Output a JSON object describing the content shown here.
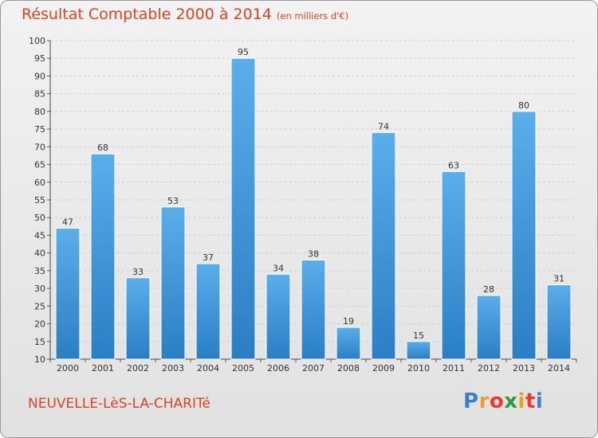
{
  "header": {
    "title": "Résultat Comptable 2000 à 2014",
    "subtitle": "(en milliers d'€)"
  },
  "footer": {
    "town": "NEUVELLE-LèS-LA-CHARITé",
    "logo_letters": [
      {
        "ch": "P",
        "color": "#3a7fd0"
      },
      {
        "ch": "r",
        "color": "#f0a020"
      },
      {
        "ch": "o",
        "color": "#e83b2e"
      },
      {
        "ch": "x",
        "color": "#2e9a3e"
      },
      {
        "ch": "i",
        "color": "#f0a020"
      },
      {
        "ch": "t",
        "color": "#e83b2e"
      },
      {
        "ch": "i",
        "color": "#3a7fd0"
      }
    ]
  },
  "colors": {
    "bar_light": "#5aaeea",
    "bar_dark": "#2a7ec4",
    "title": "#d9441e"
  },
  "chart_data": {
    "type": "bar",
    "title": "Résultat Comptable 2000 à 2014",
    "subtitle": "(en milliers d'€)",
    "xlabel": "",
    "ylabel": "",
    "categories": [
      "2000",
      "2001",
      "2002",
      "2003",
      "2004",
      "2005",
      "2006",
      "2007",
      "2008",
      "2009",
      "2010",
      "2011",
      "2012",
      "2013",
      "2014"
    ],
    "values": [
      47,
      68,
      33,
      53,
      37,
      95,
      34,
      38,
      19,
      74,
      15,
      63,
      28,
      80,
      31
    ],
    "ylim": [
      10,
      100
    ],
    "yticks": [
      10,
      15,
      20,
      25,
      30,
      35,
      40,
      45,
      50,
      55,
      60,
      65,
      70,
      75,
      80,
      85,
      90,
      95,
      100
    ],
    "grid": true,
    "legend": "none"
  }
}
